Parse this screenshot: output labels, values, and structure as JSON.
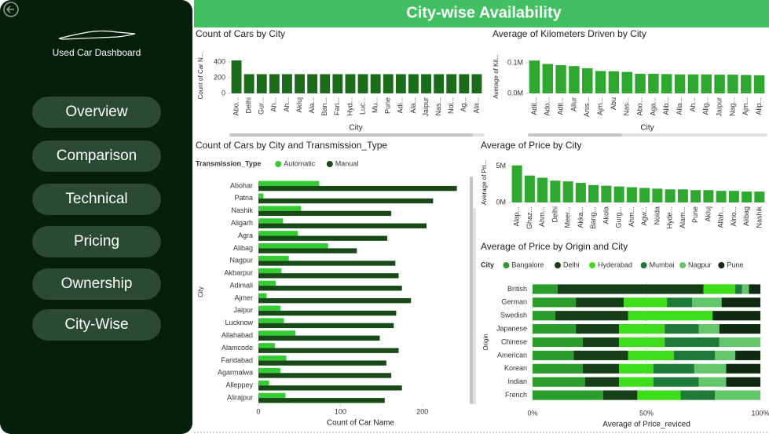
{
  "sidebar": {
    "title": "Used Car Dashboard",
    "nav": [
      "Overview",
      "Comparison",
      "Technical",
      "Pricing",
      "Ownership",
      "City-Wise"
    ]
  },
  "header": {
    "title": "City-wise Availability"
  },
  "chart_data": [
    {
      "type": "bar",
      "title": "Count of Cars by City",
      "y_label": "Count of Car N...",
      "x_label": "City",
      "categories": [
        "Abo...",
        "Delhi",
        "Gur...",
        "Ah...",
        "Ah...",
        "Akluj",
        "Ala...",
        "Ban...",
        "Fari...",
        "Hyd...",
        "Luc...",
        "Mu...",
        "Pune",
        "Adi...",
        "Ala...",
        "Jaipur",
        "Nas...",
        "Noi...",
        "Ag...",
        "Ala..."
      ],
      "values": [
        420,
        245,
        245,
        245,
        245,
        245,
        245,
        245,
        245,
        245,
        245,
        245,
        245,
        245,
        245,
        245,
        245,
        245,
        245,
        245
      ],
      "color": "#1a6b1a",
      "ylim": [
        0,
        450
      ],
      "yticks": [
        0,
        200,
        400
      ]
    },
    {
      "type": "bar",
      "title": "Average of Kilometers Driven by City",
      "y_label": "Average of Kil...",
      "x_label": "City",
      "categories": [
        "Adil...",
        "Ado...",
        "Adil...",
        "Allur",
        "Anis...",
        "Ajm...",
        "Abu",
        "Nas...",
        "Abo...",
        "Aga...",
        "Alib...",
        "Alla...",
        "Ah...",
        "Alig...",
        "Jaipur",
        "Nag...",
        "Ajm...",
        "Alip..."
      ],
      "values": [
        107000,
        96000,
        92000,
        89000,
        82000,
        73000,
        72000,
        70000,
        64000,
        64000,
        63000,
        62000,
        62000,
        62000,
        61000,
        61000,
        60000,
        59000
      ],
      "color": "#2fa82f",
      "ylim": [
        0,
        110000
      ],
      "yticks": [
        {
          "value": 0,
          "label": "0.0M"
        },
        {
          "value": 100000,
          "label": "0.1M"
        }
      ]
    },
    {
      "type": "hbar",
      "title": "Count of Cars by City and Transmission_Type",
      "legend_title": "Transmission_Type",
      "y_label": "City",
      "x_label": "Count of Car Name",
      "categories": [
        "Abohar",
        "Patna",
        "Nashik",
        "Aligarh",
        "Agra",
        "Alibag",
        "Nagpur",
        "Akbarpur",
        "Adimali",
        "Ajmer",
        "Jaipur",
        "Lucknow",
        "Allahabad",
        "Alamcode",
        "Faridabad",
        "Agarmalwa",
        "Alleppey",
        "Alirajpur"
      ],
      "series": [
        {
          "name": "Automatic",
          "color": "#33cc33",
          "values": [
            74,
            6,
            52,
            30,
            48,
            85,
            37,
            28,
            21,
            10,
            27,
            31,
            45,
            20,
            34,
            27,
            13,
            33
          ]
        },
        {
          "name": "Manual",
          "color": "#174a17",
          "values": [
            242,
            213,
            162,
            205,
            157,
            120,
            167,
            171,
            175,
            186,
            168,
            165,
            148,
            171,
            156,
            162,
            175,
            154
          ]
        }
      ],
      "xlim": [
        0,
        250
      ],
      "xticks": [
        0,
        100,
        200
      ]
    },
    {
      "type": "bar",
      "title": "Average of Price by City",
      "y_label": "Average of Pri...",
      "categories": [
        "Alap...",
        "Ghaz...",
        "Ahm...",
        "Delhi",
        "Meer...",
        "Akka...",
        "Bang...",
        "Akola",
        "Gurg...",
        "Ahm...",
        "Agw...",
        "Noida",
        "Hyde...",
        "Alam...",
        "Pune",
        "Akluj",
        "Allah...",
        "Alno...",
        "Alibag",
        "Nashik"
      ],
      "values": [
        5100000,
        3700000,
        3400000,
        3000000,
        2900000,
        2700000,
        2400000,
        2300000,
        2200000,
        2100000,
        2000000,
        1900000,
        1800000,
        1800000,
        1700000,
        1700000,
        1600000,
        1600000,
        1500000,
        1500000
      ],
      "color": "#2fa82f",
      "ylim": [
        0,
        5500000
      ],
      "yticks": [
        {
          "value": 0,
          "label": "0M"
        },
        {
          "value": 5000000,
          "label": "5M"
        }
      ]
    },
    {
      "type": "stackedbar",
      "title": "Average of Price by Origin and City",
      "legend_title": "City",
      "y_label": "Origin",
      "x_label": "Average of Price_reviced",
      "categories": [
        "British",
        "German",
        "Swedish",
        "Japanese",
        "Chinese",
        "American",
        "Korean",
        "Indian",
        "French"
      ],
      "series": [
        {
          "name": "Bangalore",
          "color": "#2a9d2a",
          "values": [
            11,
            19,
            10,
            19,
            22,
            18,
            22,
            23,
            31
          ]
        },
        {
          "name": "Delhi",
          "color": "#173f17",
          "values": [
            64,
            21,
            32,
            19,
            16,
            24,
            16,
            15,
            15
          ]
        },
        {
          "name": "Hyderabad",
          "color": "#3ddd1a",
          "values": [
            14,
            19,
            37,
            20,
            20,
            20,
            15,
            15,
            19
          ]
        },
        {
          "name": "Mumbai",
          "color": "#1f7a3a",
          "values": [
            3,
            11,
            0,
            15,
            24,
            18,
            18,
            20,
            15
          ]
        },
        {
          "name": "Nagpur",
          "color": "#63c66a",
          "values": [
            3,
            13,
            0,
            9,
            18,
            9,
            14,
            12,
            20
          ]
        },
        {
          "name": "Pune",
          "color": "#0f2a10",
          "values": [
            5,
            17,
            21,
            18,
            0,
            11,
            15,
            15,
            0
          ]
        }
      ],
      "xlim": [
        0,
        100
      ],
      "xticks": [
        {
          "value": 0,
          "label": "0%"
        },
        {
          "value": 50,
          "label": "50%"
        },
        {
          "value": 100,
          "label": "100%"
        }
      ]
    }
  ]
}
